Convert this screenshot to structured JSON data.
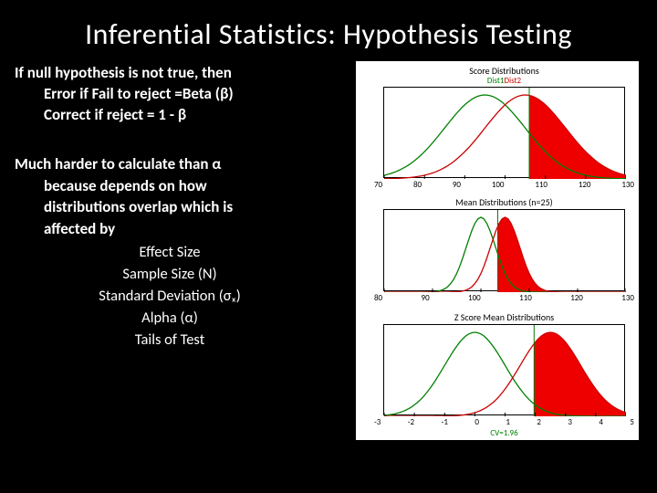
{
  "title": "Inferential Statistics: Hypothesis Testing",
  "text": {
    "p1_l1": "If null hypothesis is not true, then",
    "p1_l2": "Error if Fail to reject =Beta (β)",
    "p1_l3": "Correct if reject = 1 - β",
    "p2_l1": "Much harder to calculate than α",
    "p2_l2": "because depends on how",
    "p2_l3": "distributions overlap which is",
    "p2_l4": "affected by",
    "f1": "Effect Size",
    "f2": "Sample Size (N)",
    "f3": "Standard Deviation (σₓ)",
    "f4": "Alpha (α)",
    "f5": "Tails of Test"
  },
  "charts": {
    "background": "#ffffff",
    "line_green": "#008000",
    "line_red": "#cc0000",
    "fill_red": "#ee0000",
    "axis_color": "#000000",
    "panel1": {
      "title": "Score Distributions",
      "legend_green": "Dist1",
      "legend_red": "Dist2",
      "xmin": 70,
      "xmax": 130,
      "xticks": [
        "70",
        "80",
        "90",
        "100",
        "110",
        "120",
        "130"
      ],
      "dist1_mean": 95,
      "dist1_sd": 10,
      "dist2_mean": 105,
      "dist2_sd": 10,
      "cv": 106,
      "height": 100
    },
    "panel2": {
      "title": "Mean Distributions (n=25)",
      "xmin": 80,
      "xmax": 130,
      "xticks": [
        "80",
        "90",
        "100",
        "110",
        "120",
        "130"
      ],
      "dist1_mean": 100,
      "dist1_sd": 3,
      "dist2_mean": 105,
      "dist2_sd": 3,
      "cv": 103.5,
      "height": 90
    },
    "panel3": {
      "title": "Z Score Mean Distributions",
      "xmin": -3,
      "xmax": 5,
      "xticks": [
        "-3",
        "-2",
        "-1",
        "0",
        "1",
        "2",
        "3",
        "4",
        "5"
      ],
      "dist1_mean": 0,
      "dist1_sd": 1,
      "dist2_mean": 2.5,
      "dist2_sd": 1,
      "cv": 1.96,
      "cv_label": "CV=1.96",
      "height": 100
    }
  }
}
